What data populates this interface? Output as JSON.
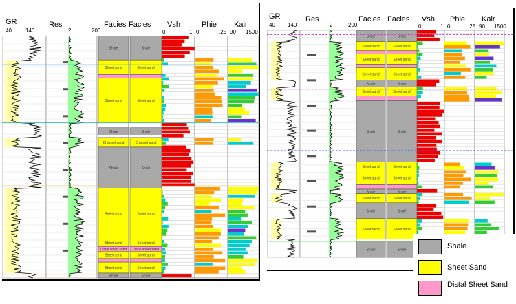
{
  "left_panel": {
    "headers": {
      "gr": {
        "title": "GR",
        "min": "40",
        "max": "140"
      },
      "res": {
        "title": "Res",
        "min": "2",
        "max": "200"
      },
      "facies1": {
        "title": "Facies"
      },
      "facies2": {
        "title": "Facies"
      },
      "vsh": {
        "title": "Vsh",
        "min": "0",
        "max": "1"
      },
      "phie": {
        "title": "Phie",
        "min": "0",
        "max": ".25"
      },
      "kair": {
        "title": "Kair",
        "min": "90",
        "max": "1500"
      }
    }
  },
  "right_panel": {
    "headers": {
      "gr": {
        "title": "GR",
        "min": "40",
        "max": "140"
      },
      "res": {
        "title": "Res",
        "min": "2",
        "max": "200"
      },
      "facies1": {
        "title": "Facies"
      },
      "facies2": {
        "title": "Facies"
      },
      "vsh": {
        "title": "Vsh",
        "min": "0",
        "max": "1"
      },
      "phie": {
        "title": "Phie",
        "min": "0",
        "max": ".25"
      },
      "kair": {
        "title": "Kair",
        "min": "90",
        "max": "1500"
      }
    }
  },
  "legend": {
    "items": [
      {
        "label": "Shale",
        "color": "#a9a9a9"
      },
      {
        "label": "Sheet Sand",
        "color": "#ffff00"
      },
      {
        "label": "Distal Sheet Sand",
        "color": "#ff99cc"
      }
    ]
  },
  "colors": {
    "shale": "#a9a9a9",
    "sheet_sand": "#ffff00",
    "distal_sheet_sand": "#ff99cc",
    "gr_fill": "#ffffaa",
    "res_fill": "#99ff99",
    "vsh_fill": "#ee0000",
    "phie_fill": "#ff9900",
    "kair_a": "#ffff00",
    "kair_b": "#33cc33",
    "kair_c": "#00cccc",
    "kair_d": "#6633cc"
  },
  "left_facies": [
    {
      "type": "shale",
      "label": "Shale",
      "top": 0.0,
      "bottom": 0.1
    },
    {
      "type": "sheet_sand",
      "label": "Sheet sand",
      "top": 0.1,
      "bottom": 0.16
    },
    {
      "type": "distal_sheet_sand",
      "label": "",
      "top": 0.16,
      "bottom": 0.175
    },
    {
      "type": "sheet_sand",
      "label": "Sheet sand",
      "top": 0.175,
      "bottom": 0.36
    },
    {
      "type": "shale",
      "label": "Shale",
      "top": 0.38,
      "bottom": 0.41
    },
    {
      "type": "sheet_sand",
      "label": "Channel sand",
      "top": 0.42,
      "bottom": 0.46
    },
    {
      "type": "shale",
      "label": "Shale",
      "top": 0.46,
      "bottom": 0.63
    },
    {
      "type": "sheet_sand",
      "label": "Sheet sand",
      "top": 0.63,
      "bottom": 0.84
    },
    {
      "type": "sheet_sand",
      "label": "Sheet sand",
      "top": 0.84,
      "bottom": 0.87
    },
    {
      "type": "distal_sheet_sand",
      "label": "Distal sheet sand",
      "top": 0.87,
      "bottom": 0.89
    },
    {
      "type": "sheet_sand",
      "label": "Sheet sand",
      "top": 0.89,
      "bottom": 0.92
    },
    {
      "type": "distal_sheet_sand",
      "label": "",
      "top": 0.92,
      "bottom": 0.935
    },
    {
      "type": "sheet_sand",
      "label": "Sheet sand",
      "top": 0.935,
      "bottom": 0.98
    },
    {
      "type": "shale",
      "label": "Shale",
      "top": 0.98,
      "bottom": 1.0
    }
  ],
  "right_facies": [
    {
      "type": "shale",
      "label": "Shale",
      "top": 0.0,
      "bottom": 0.05
    },
    {
      "type": "sheet_sand",
      "label": "Sheet sand",
      "top": 0.05,
      "bottom": 0.09
    },
    {
      "type": "distal_sheet_sand",
      "label": "",
      "top": 0.09,
      "bottom": 0.105
    },
    {
      "type": "sheet_sand",
      "label": "Sheet sand",
      "top": 0.105,
      "bottom": 0.15
    },
    {
      "type": "distal_sheet_sand",
      "label": "",
      "top": 0.15,
      "bottom": 0.165
    },
    {
      "type": "sheet_sand",
      "label": "Sheet sand",
      "top": 0.165,
      "bottom": 0.22
    },
    {
      "type": "shale",
      "label": "Shale",
      "top": 0.22,
      "bottom": 0.25
    },
    {
      "type": "sheet_sand",
      "label": "Sheet sand",
      "top": 0.25,
      "bottom": 0.29
    },
    {
      "type": "distal_sheet_sand",
      "label": "",
      "top": 0.29,
      "bottom": 0.31
    },
    {
      "type": "shale",
      "label": "Shale",
      "top": 0.31,
      "bottom": 0.58
    },
    {
      "type": "sheet_sand",
      "label": "Sheet sand",
      "top": 0.58,
      "bottom": 0.62
    },
    {
      "type": "sheet_sand",
      "label": "Sheet sand",
      "top": 0.62,
      "bottom": 0.68
    },
    {
      "type": "distal_sheet_sand",
      "label": "",
      "top": 0.68,
      "bottom": 0.7
    },
    {
      "type": "shale",
      "label": "Shale",
      "top": 0.7,
      "bottom": 0.72
    },
    {
      "type": "sheet_sand",
      "label": "Sheet sand",
      "top": 0.72,
      "bottom": 0.76
    },
    {
      "type": "shale",
      "label": "Shale",
      "top": 0.76,
      "bottom": 0.83
    },
    {
      "type": "sheet_sand",
      "label": "Sheet sand",
      "top": 0.83,
      "bottom": 0.92
    },
    {
      "type": "shale",
      "label": "Shale",
      "top": 0.93,
      "bottom": 1.0
    }
  ]
}
